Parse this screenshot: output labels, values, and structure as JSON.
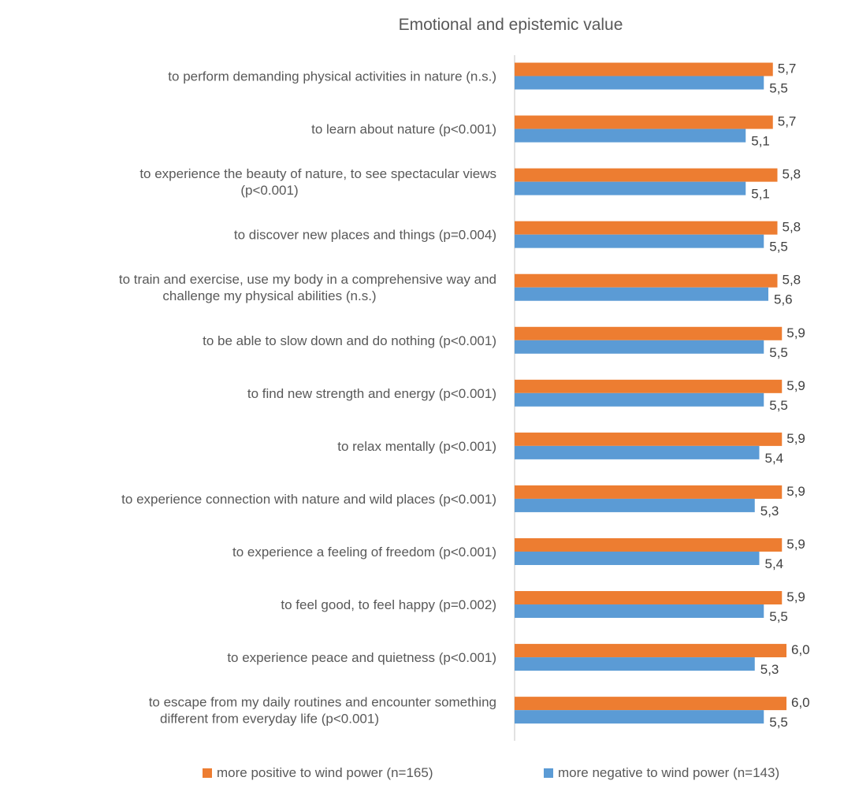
{
  "chart_data": {
    "type": "bar",
    "orientation": "horizontal",
    "title": "Emotional and epistemic value",
    "xlabel": "",
    "ylabel": "",
    "xlim": [
      0,
      6.3
    ],
    "grid": false,
    "legend_position": "bottom",
    "categories": [
      [
        "to perform demanding physical activities in nature (n.s.)"
      ],
      [
        "to learn about nature (p<0.001)"
      ],
      [
        "to experience the beauty of nature, to see spectacular views",
        "(p<0.001)"
      ],
      [
        "to discover new places and things  (p=0.004)"
      ],
      [
        "to train and exercise, use my body in a comprehensive way and",
        "challenge my physical abilities (n.s.)"
      ],
      [
        "to be able to slow down and do nothing (p<0.001)"
      ],
      [
        "to find new strength and energy  (p<0.001)"
      ],
      [
        "to relax mentally (p<0.001)"
      ],
      [
        "to experience connection with nature and wild places  (p<0.001)"
      ],
      [
        "to experience a feeling of freedom (p<0.001)"
      ],
      [
        "to feel good, to feel happy (p=0.002)"
      ],
      [
        "to experience peace and quietness (p<0.001)"
      ],
      [
        "to escape from my daily routines and encounter something",
        "different from everyday life (p<0.001)"
      ]
    ],
    "series": [
      {
        "name": "more positive to wind power (n=165)",
        "color": "#ED7D31",
        "values": [
          5.7,
          5.7,
          5.8,
          5.8,
          5.8,
          5.9,
          5.9,
          5.9,
          5.9,
          5.9,
          5.9,
          6.0,
          6.0
        ],
        "labels": [
          "5,7",
          "5,7",
          "5,8",
          "5,8",
          "5,8",
          "5,9",
          "5,9",
          "5,9",
          "5,9",
          "5,9",
          "5,9",
          "6,0",
          "6,0"
        ]
      },
      {
        "name": "more negative to wind power (n=143)",
        "color": "#5B9BD5",
        "values": [
          5.5,
          5.1,
          5.1,
          5.5,
          5.6,
          5.5,
          5.5,
          5.4,
          5.3,
          5.4,
          5.5,
          5.3,
          5.5
        ],
        "labels": [
          "5,5",
          "5,1",
          "5,1",
          "5,5",
          "5,6",
          "5,5",
          "5,5",
          "5,4",
          "5,3",
          "5,4",
          "5,5",
          "5,3",
          "5,5"
        ]
      }
    ]
  },
  "colors": {
    "axis": "#D9D9D9",
    "background": "#FFFFFF"
  }
}
